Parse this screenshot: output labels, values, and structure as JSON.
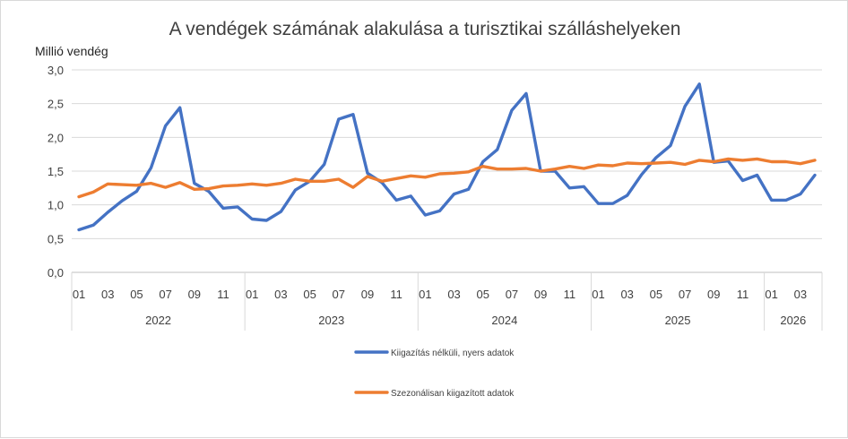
{
  "chart_data": {
    "type": "line",
    "title": "A vendégek számának alakulása a turisztikai szálláshelyeken",
    "ylabel": "Millió vendég",
    "xlabel": "",
    "ylim": [
      0,
      3.0
    ],
    "yticks": [
      "0,0",
      "0,5",
      "1,0",
      "1,5",
      "2,0",
      "2,5",
      "3,0"
    ],
    "grid": true,
    "legend_position": "bottom",
    "month_ticks": [
      "01",
      "03",
      "05",
      "07",
      "09",
      "11",
      "01",
      "03",
      "05",
      "07",
      "09",
      "11",
      "01",
      "03",
      "05",
      "07",
      "09",
      "11",
      "01",
      "03",
      "05",
      "07",
      "09",
      "11",
      "01",
      "03"
    ],
    "years": [
      "2022",
      "2023",
      "2024",
      "2025",
      "2026"
    ],
    "year_months": [
      12,
      12,
      12,
      12,
      4
    ],
    "series": [
      {
        "name": "Kiigazítás nélküli, nyers adatok",
        "color": "#4472c4",
        "values": [
          0.63,
          0.7,
          0.89,
          1.06,
          1.2,
          1.55,
          2.17,
          2.44,
          1.32,
          1.2,
          0.95,
          0.97,
          0.79,
          0.77,
          0.9,
          1.22,
          1.35,
          1.6,
          2.27,
          2.34,
          1.47,
          1.33,
          1.07,
          1.13,
          0.85,
          0.91,
          1.16,
          1.23,
          1.64,
          1.82,
          2.4,
          2.65,
          1.5,
          1.5,
          1.25,
          1.27,
          1.02,
          1.02,
          1.14,
          1.45,
          1.7,
          1.88,
          2.46,
          2.79,
          1.63,
          1.65,
          1.36,
          1.44,
          1.07,
          1.07,
          1.16,
          1.44
        ]
      },
      {
        "name": "Szezonálisan kiigazított adatok",
        "color": "#ed7d31",
        "values": [
          1.12,
          1.19,
          1.31,
          1.3,
          1.29,
          1.32,
          1.26,
          1.33,
          1.23,
          1.24,
          1.28,
          1.29,
          1.31,
          1.29,
          1.32,
          1.38,
          1.35,
          1.35,
          1.38,
          1.26,
          1.42,
          1.35,
          1.39,
          1.43,
          1.41,
          1.46,
          1.47,
          1.49,
          1.57,
          1.53,
          1.53,
          1.54,
          1.5,
          1.53,
          1.57,
          1.54,
          1.59,
          1.58,
          1.62,
          1.61,
          1.62,
          1.63,
          1.6,
          1.66,
          1.64,
          1.68,
          1.66,
          1.68,
          1.64,
          1.64,
          1.61,
          1.66
        ]
      }
    ]
  }
}
